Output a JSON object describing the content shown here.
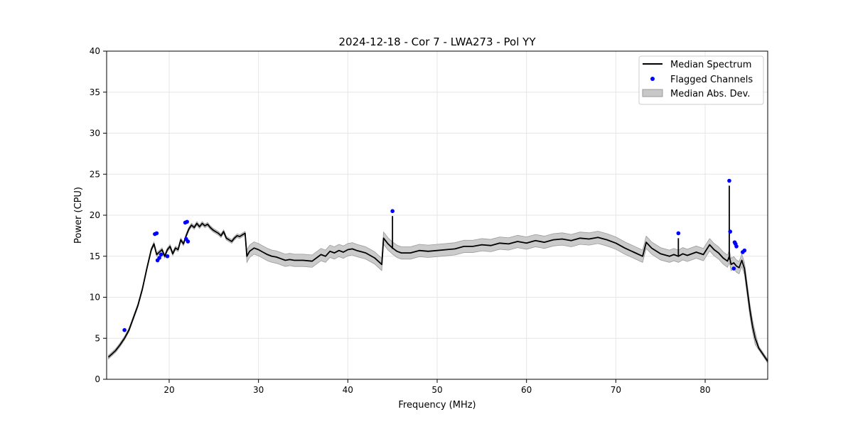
{
  "chart_data": {
    "type": "line",
    "title": "2024-12-18 - Cor 7 - LWA273 - Pol YY",
    "xlabel": "Frequency (MHz)",
    "ylabel": "Power (CPU)",
    "xlim": [
      13,
      87
    ],
    "ylim": [
      0,
      40
    ],
    "x_ticks": [
      20,
      30,
      40,
      50,
      60,
      70,
      80
    ],
    "y_ticks": [
      0,
      5,
      10,
      15,
      20,
      25,
      30,
      35,
      40
    ],
    "grid": true,
    "legend": {
      "placement": "top-right",
      "entries": [
        "Median Spectrum",
        "Flagged Channels",
        "Median Abs. Dev."
      ]
    },
    "colors": {
      "median": "#000000",
      "flagged": "#0000ff",
      "band_fill": "#c8c8c8",
      "band_edge": "#9a9a9a",
      "grid": "#e6e6e6"
    },
    "series": [
      {
        "name": "Median Spectrum",
        "x": [
          13.2,
          13.5,
          14.0,
          14.5,
          15.0,
          15.5,
          16.0,
          16.5,
          17.0,
          17.5,
          18.0,
          18.3,
          18.6,
          18.9,
          19.2,
          19.5,
          19.8,
          20.1,
          20.4,
          20.7,
          21.0,
          21.3,
          21.6,
          21.9,
          22.2,
          22.5,
          22.8,
          23.1,
          23.4,
          23.7,
          24.0,
          24.3,
          24.6,
          24.9,
          25.2,
          25.5,
          25.8,
          26.1,
          26.4,
          26.7,
          27.0,
          27.3,
          27.6,
          27.9,
          28.2,
          28.5,
          28.7,
          29.0,
          29.5,
          30.0,
          30.5,
          31.0,
          31.5,
          32.0,
          32.5,
          33.0,
          33.5,
          34.0,
          35.0,
          36.0,
          37.0,
          37.5,
          38.0,
          38.5,
          39.0,
          39.5,
          40.0,
          40.5,
          41.0,
          42.0,
          43.0,
          43.8,
          44.0,
          44.5,
          45.0,
          45.5,
          46.0,
          47.0,
          48.0,
          49.0,
          50.0,
          51.0,
          52.0,
          53.0,
          54.0,
          55.0,
          56.0,
          57.0,
          58.0,
          59.0,
          60.0,
          61.0,
          62.0,
          63.0,
          64.0,
          65.0,
          66.0,
          67.0,
          68.0,
          69.0,
          70.0,
          71.0,
          72.0,
          73.0,
          73.4,
          74.0,
          75.0,
          76.0,
          76.5,
          77.0,
          77.5,
          78.0,
          79.0,
          79.8,
          80.5,
          81.0,
          81.5,
          82.0,
          82.5,
          82.7,
          82.9,
          83.2,
          83.5,
          83.8,
          84.1,
          84.4,
          84.7,
          85.0,
          85.3,
          85.6,
          86.0,
          86.5,
          87.0
        ],
        "y": [
          2.7,
          3.0,
          3.5,
          4.2,
          5.0,
          6.0,
          7.5,
          9.0,
          11.0,
          13.5,
          15.8,
          16.5,
          15.2,
          15.5,
          15.8,
          15.0,
          15.8,
          16.2,
          15.3,
          16.0,
          15.8,
          17.0,
          16.5,
          17.5,
          18.3,
          18.8,
          18.5,
          19.0,
          18.6,
          19.0,
          18.7,
          18.9,
          18.5,
          18.2,
          18.0,
          17.8,
          17.5,
          18.0,
          17.2,
          17.0,
          16.8,
          17.2,
          17.5,
          17.4,
          17.6,
          17.8,
          15.0,
          15.6,
          16.0,
          15.8,
          15.5,
          15.2,
          15.0,
          14.9,
          14.7,
          14.5,
          14.6,
          14.5,
          14.5,
          14.4,
          15.2,
          15.0,
          15.6,
          15.4,
          15.7,
          15.5,
          15.8,
          15.9,
          15.7,
          15.4,
          14.8,
          14.0,
          17.2,
          16.5,
          16.0,
          15.6,
          15.4,
          15.4,
          15.7,
          15.6,
          15.7,
          15.8,
          15.9,
          16.2,
          16.2,
          16.4,
          16.3,
          16.6,
          16.5,
          16.8,
          16.6,
          16.9,
          16.7,
          17.0,
          17.1,
          16.9,
          17.2,
          17.1,
          17.3,
          17.0,
          16.6,
          16.0,
          15.5,
          15.0,
          16.7,
          16.0,
          15.3,
          15.0,
          15.2,
          15.0,
          15.3,
          15.1,
          15.5,
          15.2,
          16.4,
          15.8,
          15.4,
          14.8,
          14.4,
          15.0,
          14.0,
          14.2,
          13.8,
          13.6,
          14.5,
          13.5,
          11.0,
          8.5,
          6.5,
          5.0,
          3.8,
          3.0,
          2.2
        ]
      },
      {
        "name": "Flagged Channels",
        "x": [
          15.0,
          18.4,
          18.6,
          18.7,
          18.9,
          19.1,
          19.8,
          21.8,
          22.0,
          21.9,
          22.1,
          45.0,
          77.0,
          82.7,
          82.8,
          83.3,
          83.4,
          83.5,
          83.2,
          84.2,
          84.4
        ],
        "y": [
          6.0,
          17.7,
          17.8,
          14.5,
          14.8,
          15.2,
          15.0,
          19.1,
          19.2,
          17.1,
          16.8,
          20.5,
          17.8,
          24.2,
          18.0,
          16.7,
          16.5,
          16.2,
          13.5,
          15.5,
          15.7
        ]
      }
    ],
    "band": {
      "name": "Median Abs. Dev.",
      "half_width": 0.75
    }
  }
}
